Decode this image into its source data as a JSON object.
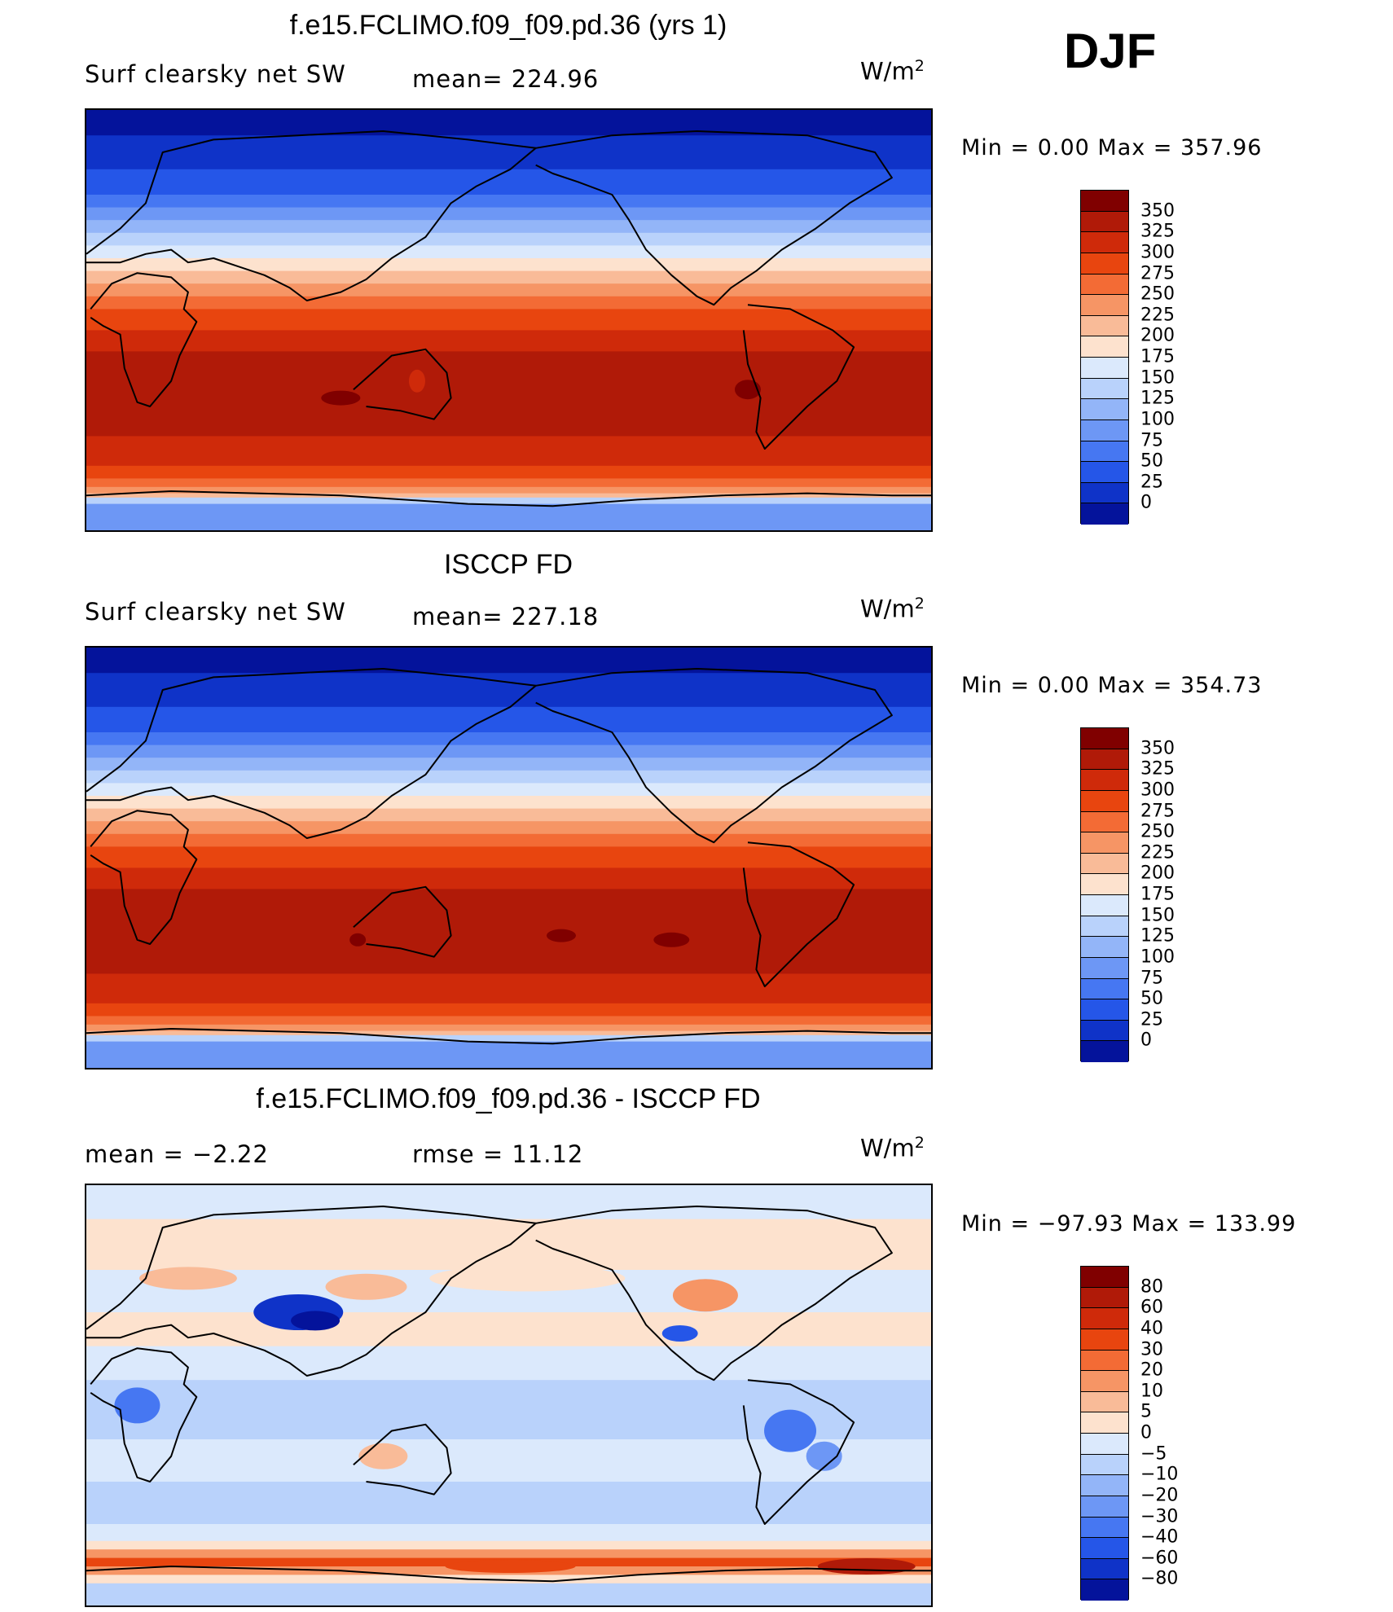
{
  "season": "DJF",
  "panels": [
    {
      "title": "f.e15.FCLIMO.f09_f09.pd.36 (yrs 1)",
      "left_label": "Surf clearsky net SW",
      "center_label": "mean= 224.96",
      "units": "W/m",
      "units_sup": "2",
      "minmax": "Min =     0.00  Max  =  357.96",
      "kind": "abs",
      "colorbar": {
        "ticks": [
          "350",
          "325",
          "300",
          "275",
          "250",
          "225",
          "200",
          "175",
          "150",
          "125",
          "100",
          "75",
          "50",
          "25",
          "0"
        ],
        "colors": [
          "#800000",
          "#b01a08",
          "#cf2a0a",
          "#e8450f",
          "#f36b35",
          "#f69565",
          "#f9bb98",
          "#fde2ce",
          "#dbe9fc",
          "#b9d2fb",
          "#93b5f8",
          "#6d97f5",
          "#4677f2",
          "#2556e8",
          "#0f33c8",
          "#04139b"
        ]
      }
    },
    {
      "title": "ISCCP FD",
      "left_label": "Surf clearsky net SW",
      "center_label": "mean= 227.18",
      "units": "W/m",
      "units_sup": "2",
      "minmax": "Min =     0.00  Max  =  354.73",
      "kind": "abs",
      "colorbar": {
        "ticks": [
          "350",
          "325",
          "300",
          "275",
          "250",
          "225",
          "200",
          "175",
          "150",
          "125",
          "100",
          "75",
          "50",
          "25",
          "0"
        ],
        "colors": [
          "#800000",
          "#b01a08",
          "#cf2a0a",
          "#e8450f",
          "#f36b35",
          "#f69565",
          "#f9bb98",
          "#fde2ce",
          "#dbe9fc",
          "#b9d2fb",
          "#93b5f8",
          "#6d97f5",
          "#4677f2",
          "#2556e8",
          "#0f33c8",
          "#04139b"
        ]
      }
    },
    {
      "title": "f.e15.FCLIMO.f09_f09.pd.36 - ISCCP FD",
      "left_label": "mean =    −2.22",
      "center_label": "rmse  =     11.12",
      "units": "W/m",
      "units_sup": "2",
      "minmax": "Min  = −97.93  Max  =  133.99",
      "kind": "diff",
      "colorbar": {
        "ticks": [
          "80",
          "60",
          "40",
          "30",
          "20",
          "10",
          "5",
          "0",
          "−5",
          "−10",
          "−20",
          "−30",
          "−40",
          "−60",
          "−80"
        ],
        "colors": [
          "#800000",
          "#b01a08",
          "#cf2a0a",
          "#e8450f",
          "#f36b35",
          "#f69565",
          "#f9bb98",
          "#fde2ce",
          "#dbe9fc",
          "#b9d2fb",
          "#93b5f8",
          "#6d97f5",
          "#4677f2",
          "#2556e8",
          "#0f33c8",
          "#04139b"
        ]
      }
    }
  ]
}
